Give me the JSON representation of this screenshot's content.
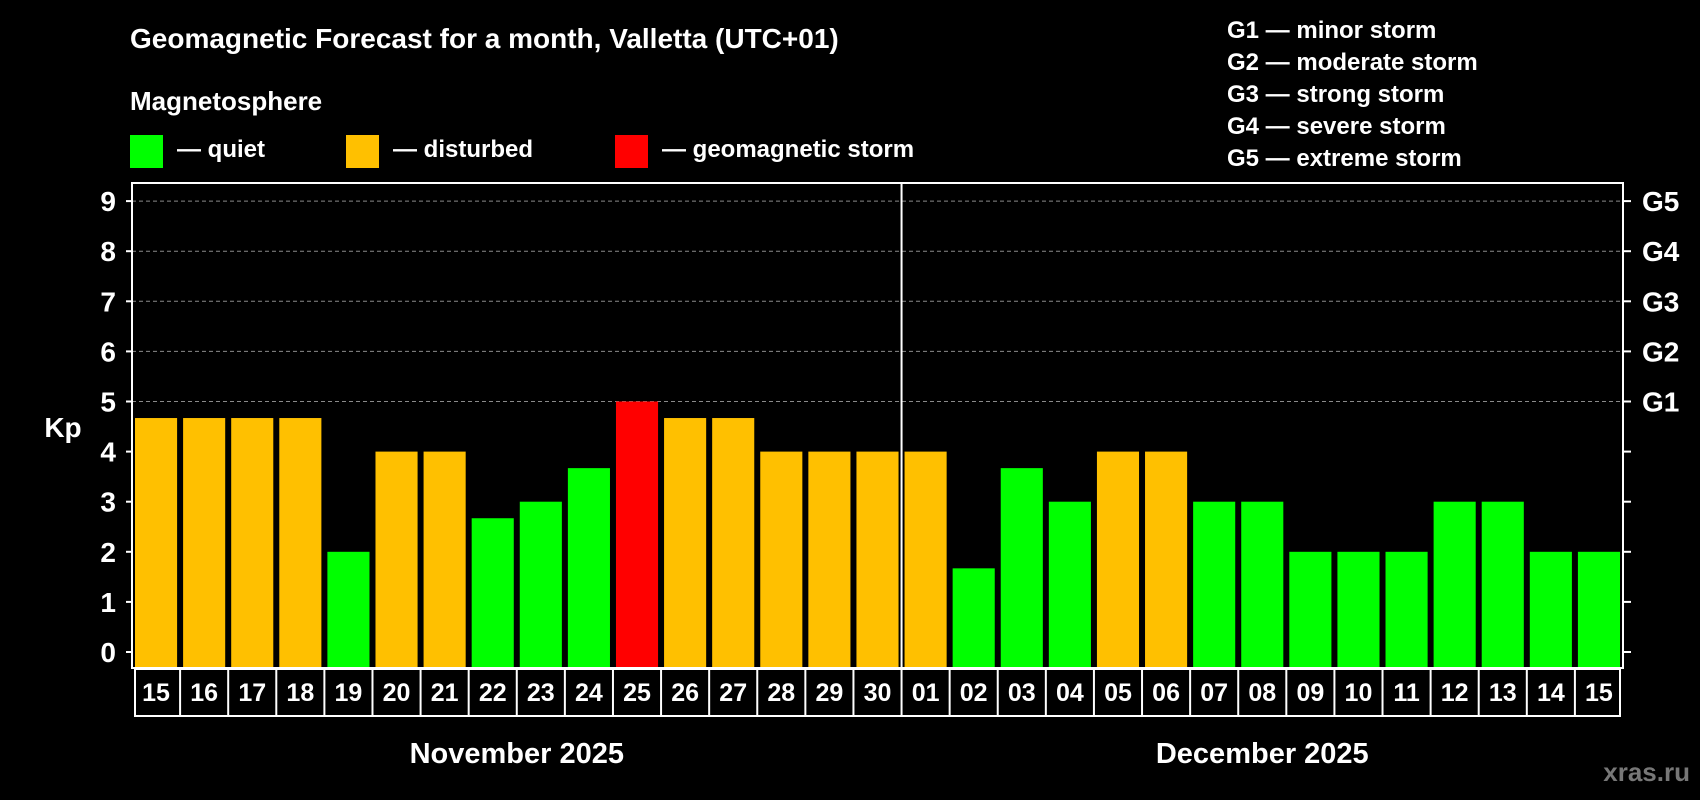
{
  "chart_data": {
    "type": "bar",
    "title": "Geomagnetic Forecast for a month, Valletta (UTC+01)",
    "legend_title": "Magnetosphere",
    "legend": [
      {
        "label": "— quiet",
        "color": "#00ff00"
      },
      {
        "label": "— disturbed",
        "color": "#ffc000"
      },
      {
        "label": "— geomagnetic storm",
        "color": "#ff0000"
      }
    ],
    "storm_scale": [
      "G1 — minor storm",
      "G2 — moderate storm",
      "G3 — strong storm",
      "G4 — severe storm",
      "G5 — extreme storm"
    ],
    "ylabel": "Kp",
    "ylim": [
      0,
      9
    ],
    "yticks": [
      "0",
      "1",
      "2",
      "3",
      "4",
      "5",
      "6",
      "7",
      "8",
      "9"
    ],
    "right_ticks": [
      {
        "kp": 5,
        "label": "G1"
      },
      {
        "kp": 6,
        "label": "G2"
      },
      {
        "kp": 7,
        "label": "G3"
      },
      {
        "kp": 8,
        "label": "G4"
      },
      {
        "kp": 9,
        "label": "G5"
      }
    ],
    "months": [
      {
        "label": "November 2025",
        "days": [
          "15",
          "16",
          "17",
          "18",
          "19",
          "20",
          "21",
          "22",
          "23",
          "24",
          "25",
          "26",
          "27",
          "28",
          "29",
          "30"
        ]
      },
      {
        "label": "December 2025",
        "days": [
          "01",
          "02",
          "03",
          "04",
          "05",
          "06",
          "07",
          "08",
          "09",
          "10",
          "11",
          "12",
          "13",
          "14",
          "15"
        ]
      }
    ],
    "categories": [
      "15",
      "16",
      "17",
      "18",
      "19",
      "20",
      "21",
      "22",
      "23",
      "24",
      "25",
      "26",
      "27",
      "28",
      "29",
      "30",
      "01",
      "02",
      "03",
      "04",
      "05",
      "06",
      "07",
      "08",
      "09",
      "10",
      "11",
      "12",
      "13",
      "14",
      "15"
    ],
    "values": [
      4.67,
      4.67,
      4.67,
      4.67,
      2,
      4,
      4,
      2.67,
      3,
      3.67,
      5,
      4.67,
      4.67,
      4,
      4,
      4,
      4,
      1.67,
      3.67,
      3,
      4,
      4,
      3,
      3,
      2,
      2,
      2,
      3,
      3,
      2,
      2
    ],
    "levels": [
      "disturbed",
      "disturbed",
      "disturbed",
      "disturbed",
      "quiet",
      "disturbed",
      "disturbed",
      "quiet",
      "quiet",
      "quiet",
      "storm",
      "disturbed",
      "disturbed",
      "disturbed",
      "disturbed",
      "disturbed",
      "disturbed",
      "quiet",
      "quiet",
      "quiet",
      "disturbed",
      "disturbed",
      "quiet",
      "quiet",
      "quiet",
      "quiet",
      "quiet",
      "quiet",
      "quiet",
      "quiet",
      "quiet"
    ]
  },
  "colors": {
    "quiet": "#00ff00",
    "disturbed": "#ffc000",
    "storm": "#ff0000",
    "frame": "#ffffff",
    "grid": "#8a8a8a"
  },
  "watermark": "xras.ru"
}
